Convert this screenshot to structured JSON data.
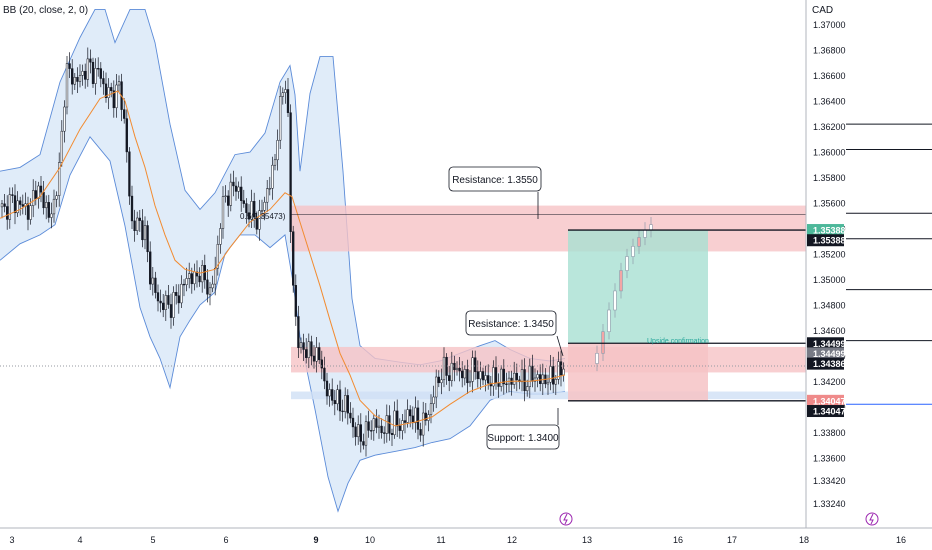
{
  "indicator_label": "BB (20, close, 2, 0)",
  "currency": "CAD",
  "colors": {
    "up": "#26a69a",
    "down": "#131722",
    "band_fill": "#d6e6f7",
    "band_line": "#5b8bd8",
    "basis_line": "#f28b30",
    "resistance_zone": "#f6c3c5",
    "support_zone": "#cfe0f5",
    "profit_zone": "#a8e0d2",
    "loss_zone": "#f6c3c5",
    "crosshair": "#9598a1",
    "axis_text": "#131722",
    "tag_dark": "#131722",
    "tag_green": "#4db89a",
    "tag_red": "#ef8a8a",
    "tag_gray": "#787b86",
    "tag_blue": "#2962ff"
  },
  "chart_data": {
    "type": "candlestick",
    "title": "",
    "ylim": [
      1.3316,
      1.3714
    ],
    "y_ticks": [
      "1.37000",
      "1.36800",
      "1.36600",
      "1.36400",
      "1.36200",
      "1.36000",
      "1.35800",
      "1.35600",
      "1.35400",
      "1.35200",
      "1.35000",
      "1.34800",
      "1.34600",
      "1.34400",
      "1.34200",
      "1.34000",
      "1.33800",
      "1.33600",
      "1.33420",
      "1.33240"
    ],
    "x_ticks": [
      "3",
      "4",
      "5",
      "6",
      "9",
      "10",
      "11",
      "12",
      "13",
      "16",
      "17",
      "18"
    ],
    "right_x_tick": "16",
    "price_path": [
      [
        0,
        1.3557
      ],
      [
        5,
        1.3553
      ],
      [
        10,
        1.3562
      ],
      [
        15,
        1.356
      ],
      [
        20,
        1.3558
      ],
      [
        25,
        1.3558
      ],
      [
        30,
        1.355
      ],
      [
        35,
        1.3575
      ],
      [
        40,
        1.3565
      ],
      [
        45,
        1.3562
      ],
      [
        50,
        1.3545
      ],
      [
        55,
        1.3565
      ],
      [
        60,
        1.359
      ],
      [
        63,
        1.3628
      ],
      [
        66,
        1.3665
      ],
      [
        70,
        1.3662
      ],
      [
        74,
        1.3656
      ],
      [
        80,
        1.3658
      ],
      [
        85,
        1.3665
      ],
      [
        90,
        1.3668
      ],
      [
        95,
        1.366
      ],
      [
        100,
        1.3665
      ],
      [
        105,
        1.3645
      ],
      [
        110,
        1.3648
      ],
      [
        115,
        1.3642
      ],
      [
        120,
        1.3655
      ],
      [
        125,
        1.3615
      ],
      [
        128,
        1.3588
      ],
      [
        131,
        1.3545
      ],
      [
        135,
        1.3542
      ],
      [
        140,
        1.3545
      ],
      [
        145,
        1.3535
      ],
      [
        150,
        1.3505
      ],
      [
        155,
        1.349
      ],
      [
        160,
        1.348
      ],
      [
        165,
        1.3482
      ],
      [
        170,
        1.3478
      ],
      [
        175,
        1.3484
      ],
      [
        180,
        1.349
      ],
      [
        185,
        1.3498
      ],
      [
        190,
        1.3505
      ],
      [
        195,
        1.3498
      ],
      [
        200,
        1.3508
      ],
      [
        205,
        1.3498
      ],
      [
        210,
        1.349
      ],
      [
        215,
        1.3505
      ],
      [
        220,
        1.3545
      ],
      [
        225,
        1.3565
      ],
      [
        230,
        1.3568
      ],
      [
        235,
        1.3575
      ],
      [
        240,
        1.3568
      ],
      [
        245,
        1.3552
      ],
      [
        250,
        1.3555
      ],
      [
        255,
        1.3548
      ],
      [
        260,
        1.3547
      ],
      [
        265,
        1.3565
      ],
      [
        270,
        1.3575
      ],
      [
        275,
        1.3595
      ],
      [
        278,
        1.362
      ],
      [
        281,
        1.364
      ],
      [
        284,
        1.3652
      ],
      [
        287,
        1.3662
      ],
      [
        290,
        1.355
      ],
      [
        292,
        1.351
      ],
      [
        294,
        1.3488
      ],
      [
        296,
        1.3468
      ],
      [
        298,
        1.3452
      ],
      [
        300,
        1.3443
      ],
      [
        305,
        1.3448
      ],
      [
        310,
        1.344
      ],
      [
        315,
        1.3443
      ],
      [
        320,
        1.3437
      ],
      [
        325,
        1.3418
      ],
      [
        330,
        1.3405
      ],
      [
        335,
        1.341
      ],
      [
        340,
        1.3398
      ],
      [
        345,
        1.3405
      ],
      [
        350,
        1.339
      ],
      [
        355,
        1.3382
      ],
      [
        360,
        1.3375
      ],
      [
        365,
        1.3378
      ],
      [
        370,
        1.3385
      ],
      [
        375,
        1.3388
      ],
      [
        380,
        1.338
      ],
      [
        385,
        1.3385
      ],
      [
        390,
        1.3382
      ],
      [
        395,
        1.3389
      ],
      [
        400,
        1.3384
      ],
      [
        405,
        1.339
      ],
      [
        410,
        1.3396
      ],
      [
        415,
        1.339
      ],
      [
        420,
        1.3383
      ],
      [
        425,
        1.339
      ],
      [
        430,
        1.3398
      ],
      [
        435,
        1.3415
      ],
      [
        440,
        1.3425
      ],
      [
        445,
        1.343
      ],
      [
        450,
        1.3425
      ],
      [
        455,
        1.3432
      ],
      [
        460,
        1.3428
      ],
      [
        465,
        1.3422
      ],
      [
        470,
        1.3425
      ],
      [
        475,
        1.3432
      ],
      [
        480,
        1.3422
      ],
      [
        485,
        1.3424
      ],
      [
        490,
        1.3418
      ],
      [
        495,
        1.3425
      ],
      [
        500,
        1.3419
      ],
      [
        505,
        1.3423
      ],
      [
        510,
        1.3417
      ],
      [
        515,
        1.3425
      ],
      [
        520,
        1.3422
      ],
      [
        525,
        1.3418
      ],
      [
        530,
        1.3423
      ],
      [
        535,
        1.3425
      ],
      [
        540,
        1.342
      ],
      [
        545,
        1.3422
      ],
      [
        550,
        1.3422
      ],
      [
        555,
        1.3425
      ],
      [
        560,
        1.3428
      ],
      [
        565,
        1.3432
      ]
    ],
    "bollinger": {
      "upper": [
        [
          0,
          1.3585
        ],
        [
          20,
          1.3588
        ],
        [
          40,
          1.3598
        ],
        [
          60,
          1.3655
        ],
        [
          80,
          1.369
        ],
        [
          95,
          1.3712
        ],
        [
          105,
          1.3712
        ],
        [
          115,
          1.3686
        ],
        [
          130,
          1.3712
        ],
        [
          145,
          1.3712
        ],
        [
          155,
          1.3686
        ],
        [
          170,
          1.3622
        ],
        [
          185,
          1.357
        ],
        [
          200,
          1.3555
        ],
        [
          215,
          1.3568
        ],
        [
          235,
          1.3598
        ],
        [
          250,
          1.36
        ],
        [
          265,
          1.3615
        ],
        [
          280,
          1.3655
        ],
        [
          290,
          1.3668
        ],
        [
          295,
          1.3645
        ],
        [
          300,
          1.3585
        ],
        [
          310,
          1.3646
        ],
        [
          320,
          1.3675
        ],
        [
          333,
          1.3675
        ],
        [
          343,
          1.3585
        ],
        [
          352,
          1.3485
        ],
        [
          360,
          1.3448
        ],
        [
          375,
          1.3438
        ],
        [
          400,
          1.3435
        ],
        [
          420,
          1.3433
        ],
        [
          440,
          1.3436
        ],
        [
          460,
          1.3442
        ],
        [
          480,
          1.3448
        ],
        [
          495,
          1.3452
        ],
        [
          510,
          1.3445
        ],
        [
          530,
          1.3438
        ],
        [
          550,
          1.3436
        ],
        [
          565,
          1.3438
        ]
      ],
      "lower": [
        [
          0,
          1.3515
        ],
        [
          20,
          1.3528
        ],
        [
          40,
          1.3535
        ],
        [
          55,
          1.3543
        ],
        [
          70,
          1.3582
        ],
        [
          90,
          1.3612
        ],
        [
          110,
          1.3593
        ],
        [
          125,
          1.3542
        ],
        [
          140,
          1.3478
        ],
        [
          150,
          1.3455
        ],
        [
          160,
          1.3438
        ],
        [
          170,
          1.3415
        ],
        [
          180,
          1.3455
        ],
        [
          190,
          1.3468
        ],
        [
          200,
          1.348
        ],
        [
          215,
          1.349
        ],
        [
          225,
          1.352
        ],
        [
          240,
          1.3535
        ],
        [
          255,
          1.3535
        ],
        [
          270,
          1.3525
        ],
        [
          285,
          1.3535
        ],
        [
          293,
          1.3498
        ],
        [
          300,
          1.3455
        ],
        [
          315,
          1.3398
        ],
        [
          328,
          1.3345
        ],
        [
          338,
          1.3318
        ],
        [
          348,
          1.334
        ],
        [
          360,
          1.3358
        ],
        [
          375,
          1.3362
        ],
        [
          395,
          1.3365
        ],
        [
          415,
          1.3368
        ],
        [
          432,
          1.3372
        ],
        [
          450,
          1.3375
        ],
        [
          470,
          1.3385
        ],
        [
          490,
          1.3405
        ],
        [
          510,
          1.3412
        ],
        [
          530,
          1.341
        ],
        [
          545,
          1.341
        ],
        [
          565,
          1.3412
        ]
      ],
      "basis": [
        [
          0,
          1.3548
        ],
        [
          20,
          1.3555
        ],
        [
          40,
          1.3565
        ],
        [
          60,
          1.3588
        ],
        [
          80,
          1.3618
        ],
        [
          100,
          1.3642
        ],
        [
          118,
          1.3648
        ],
        [
          125,
          1.364
        ],
        [
          135,
          1.3612
        ],
        [
          145,
          1.3588
        ],
        [
          155,
          1.3558
        ],
        [
          165,
          1.3535
        ],
        [
          175,
          1.3515
        ],
        [
          185,
          1.3508
        ],
        [
          200,
          1.3505
        ],
        [
          215,
          1.3508
        ],
        [
          230,
          1.3525
        ],
        [
          250,
          1.3545
        ],
        [
          270,
          1.3555
        ],
        [
          285,
          1.3568
        ],
        [
          292,
          1.3565
        ],
        [
          300,
          1.3545
        ],
        [
          310,
          1.352
        ],
        [
          320,
          1.3495
        ],
        [
          330,
          1.3468
        ],
        [
          340,
          1.3442
        ],
        [
          350,
          1.3425
        ],
        [
          360,
          1.3405
        ],
        [
          375,
          1.3393
        ],
        [
          395,
          1.3385
        ],
        [
          415,
          1.3388
        ],
        [
          432,
          1.3392
        ],
        [
          450,
          1.3402
        ],
        [
          470,
          1.3412
        ],
        [
          490,
          1.3418
        ],
        [
          510,
          1.342
        ],
        [
          530,
          1.342
        ],
        [
          550,
          1.3422
        ],
        [
          565,
          1.3425
        ]
      ]
    },
    "zones": [
      {
        "name": "resistance-upper",
        "x0": 291,
        "x1": 806,
        "y_top": 1.3558,
        "y_bottom": 1.3522,
        "kind": "resistance"
      },
      {
        "name": "resistance-lower",
        "x0": 291,
        "x1": 806,
        "y_top": 1.3447,
        "y_bottom": 1.3427,
        "kind": "resistance"
      },
      {
        "name": "support",
        "x0": 291,
        "x1": 806,
        "y_top": 1.3412,
        "y_bottom": 1.3406,
        "kind": "support"
      }
    ],
    "position": {
      "x0": 568,
      "x1": 708,
      "target": 1.35388,
      "entry": 1.34499,
      "stop": 1.34047,
      "label": "Upside confirmation"
    },
    "projection": [
      [
        597,
        1.3442
      ],
      [
        603,
        1.3459
      ],
      [
        609,
        1.3476
      ],
      [
        615,
        1.3491
      ],
      [
        621,
        1.3507
      ],
      [
        627,
        1.3518
      ],
      [
        633,
        1.3526
      ],
      [
        639,
        1.3533
      ],
      [
        645,
        1.3539
      ],
      [
        651,
        1.3543
      ]
    ],
    "fib_label": "0.5(1.35473)",
    "annotations": [
      {
        "name": "resistance-1-3550",
        "text": "Resistance: 1.3550"
      },
      {
        "name": "resistance-1-3450",
        "text": "Resistance: 1.3450"
      },
      {
        "name": "support-1-3400",
        "text": "Support: 1.3400"
      }
    ],
    "price_tags": [
      {
        "text": "1.35388",
        "y": 1.35388,
        "style": "green"
      },
      {
        "text": "1.35388",
        "y": 1.35308,
        "style": "dark"
      },
      {
        "text": "1.34499",
        "y": 1.34499,
        "style": "dark"
      },
      {
        "text": "1.34499",
        "y": 1.34419,
        "style": "gray"
      },
      {
        "text": "1.34386",
        "y": 1.34339,
        "style": "dark"
      },
      {
        "text": "1.34047",
        "y": 1.34047,
        "style": "red"
      },
      {
        "text": "1.34047",
        "y": 1.33967,
        "style": "dark"
      }
    ],
    "crosshair_y": 1.3433
  }
}
